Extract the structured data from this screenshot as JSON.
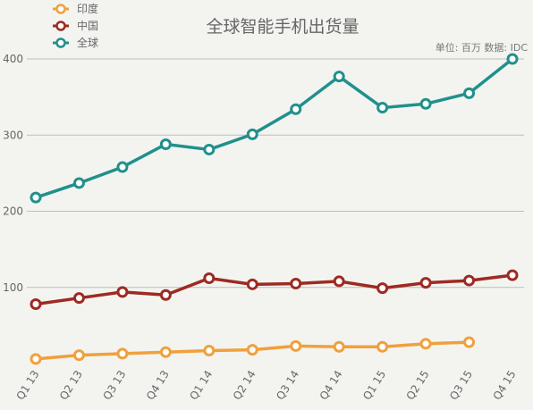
{
  "chart_data": {
    "type": "line",
    "title": "全球智能手机出货量",
    "source_note": "单位: 百万  数据: IDC",
    "xlabel": "",
    "ylabel": "",
    "ylim": [
      0,
      400
    ],
    "yticks": [
      100,
      200,
      300,
      400
    ],
    "grid": true,
    "legend_position": "top-left",
    "categories": [
      "Q1 13",
      "Q2 13",
      "Q3 13",
      "Q4 13",
      "Q1 14",
      "Q2 14",
      "Q3 14",
      "Q4 14",
      "Q1 15",
      "Q2 15",
      "Q3 15",
      "Q4 15"
    ],
    "series": [
      {
        "name": "印度",
        "color": "#f0a03c",
        "values": [
          6,
          11,
          13,
          15,
          17,
          18,
          23,
          22,
          22,
          26,
          28,
          null
        ]
      },
      {
        "name": "中国",
        "color": "#9e2a22",
        "values": [
          78,
          86,
          94,
          90,
          112,
          104,
          105,
          108,
          99,
          106,
          109,
          116
        ]
      },
      {
        "name": "全球",
        "color": "#21908c",
        "values": [
          218,
          237,
          258,
          288,
          281,
          301,
          334,
          377,
          336,
          341,
          355,
          400
        ]
      }
    ]
  }
}
